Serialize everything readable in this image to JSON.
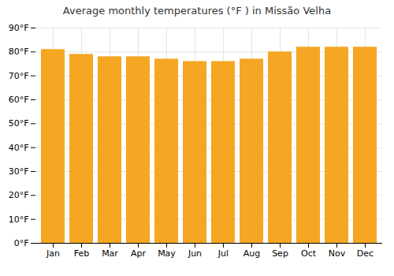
{
  "chart_data": {
    "type": "bar",
    "title": "Average monthly temperatures (°F ) in Missão Velha",
    "categories": [
      "Jan",
      "Feb",
      "Mar",
      "Apr",
      "May",
      "Jun",
      "Jul",
      "Aug",
      "Sep",
      "Oct",
      "Nov",
      "Dec"
    ],
    "values": [
      81,
      79,
      78,
      78,
      77,
      76,
      76,
      77,
      80,
      82,
      82,
      82
    ],
    "color": "#F5A623",
    "ylim": [
      0,
      90
    ],
    "yticks": [
      {
        "value": 0,
        "label": "0°F"
      },
      {
        "value": 10,
        "label": "10°F"
      },
      {
        "value": 20,
        "label": "20°F"
      },
      {
        "value": 30,
        "label": "30°F"
      },
      {
        "value": 40,
        "label": "40°F"
      },
      {
        "value": 50,
        "label": "50°F"
      },
      {
        "value": 60,
        "label": "60°F"
      },
      {
        "value": 70,
        "label": "70°F"
      },
      {
        "value": 80,
        "label": "80°F"
      },
      {
        "value": 90,
        "label": "90°F"
      }
    ],
    "grid": true
  }
}
